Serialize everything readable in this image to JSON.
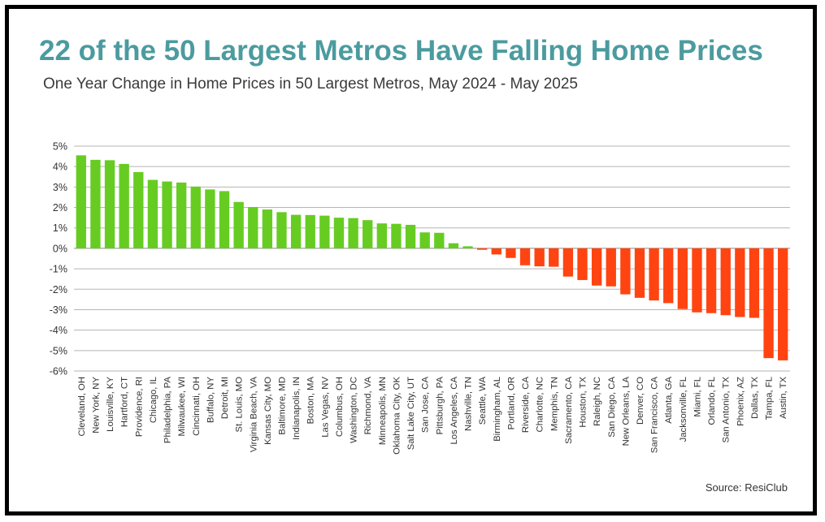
{
  "chart_data": {
    "type": "bar",
    "title": "22 of the 50 Largest Metros Have Falling Home Prices",
    "subtitle": "One Year Change in Home Prices in 50 Largest Metros, May 2024 - May 2025",
    "source": "Source: ResiClub",
    "ylim": [
      -6,
      5
    ],
    "y_ticks": [
      "5%",
      "4%",
      "3%",
      "2%",
      "1%",
      "0%",
      "-1%",
      "-2%",
      "-3%",
      "-4%",
      "-5%",
      "-6%"
    ],
    "grid": true,
    "colors": {
      "positive": "#66cc22",
      "negative": "#ff4411"
    },
    "categories": [
      "Cleveland, OH",
      "New York, NY",
      "Louisville, KY",
      "Hartford, CT",
      "Providence, RI",
      "Chicago, IL",
      "Philadelphia, PA",
      "Milwaukee, WI",
      "Cincinnati, OH",
      "Buffalo, NY",
      "Detroit, MI",
      "St. Louis, MO",
      "Virginia Beach, VA",
      "Kansas City, MO",
      "Baltimore, MD",
      "Indianapolis, IN",
      "Boston, MA",
      "Las Vegas, NV",
      "Columbus, OH",
      "Washington, DC",
      "Richmond, VA",
      "Minneapolis, MN",
      "Oklahoma City, OK",
      "Salt Lake City, UT",
      "San Jose, CA",
      "Pittsburgh, PA",
      "Los Angeles, CA",
      "Nashville, TN",
      "Seattle, WA",
      "Birmingham, AL",
      "Portland, OR",
      "Riverside, CA",
      "Charlotte, NC",
      "Memphis, TN",
      "Sacramento, CA",
      "Houston, TX",
      "Raleigh, NC",
      "San Diego, CA",
      "New Orleans, LA",
      "Denver, CO",
      "San Francisco, CA",
      "Atlanta, GA",
      "Jacksonville, FL",
      "Miami, FL",
      "Orlando, FL",
      "San Antonio, TX",
      "Phoenix, AZ",
      "Dallas, TX",
      "Tampa, FL",
      "Austin, TX"
    ],
    "values": [
      4.55,
      4.33,
      4.31,
      4.13,
      3.73,
      3.35,
      3.27,
      3.22,
      3.02,
      2.88,
      2.8,
      2.27,
      2.02,
      1.9,
      1.77,
      1.64,
      1.63,
      1.6,
      1.5,
      1.48,
      1.38,
      1.22,
      1.2,
      1.15,
      0.78,
      0.76,
      0.25,
      0.1,
      -0.07,
      -0.3,
      -0.47,
      -0.83,
      -0.88,
      -0.9,
      -1.38,
      -1.55,
      -1.82,
      -1.86,
      -2.25,
      -2.42,
      -2.55,
      -2.68,
      -2.97,
      -3.13,
      -3.17,
      -3.27,
      -3.36,
      -3.4,
      -5.37,
      -5.48
    ]
  }
}
